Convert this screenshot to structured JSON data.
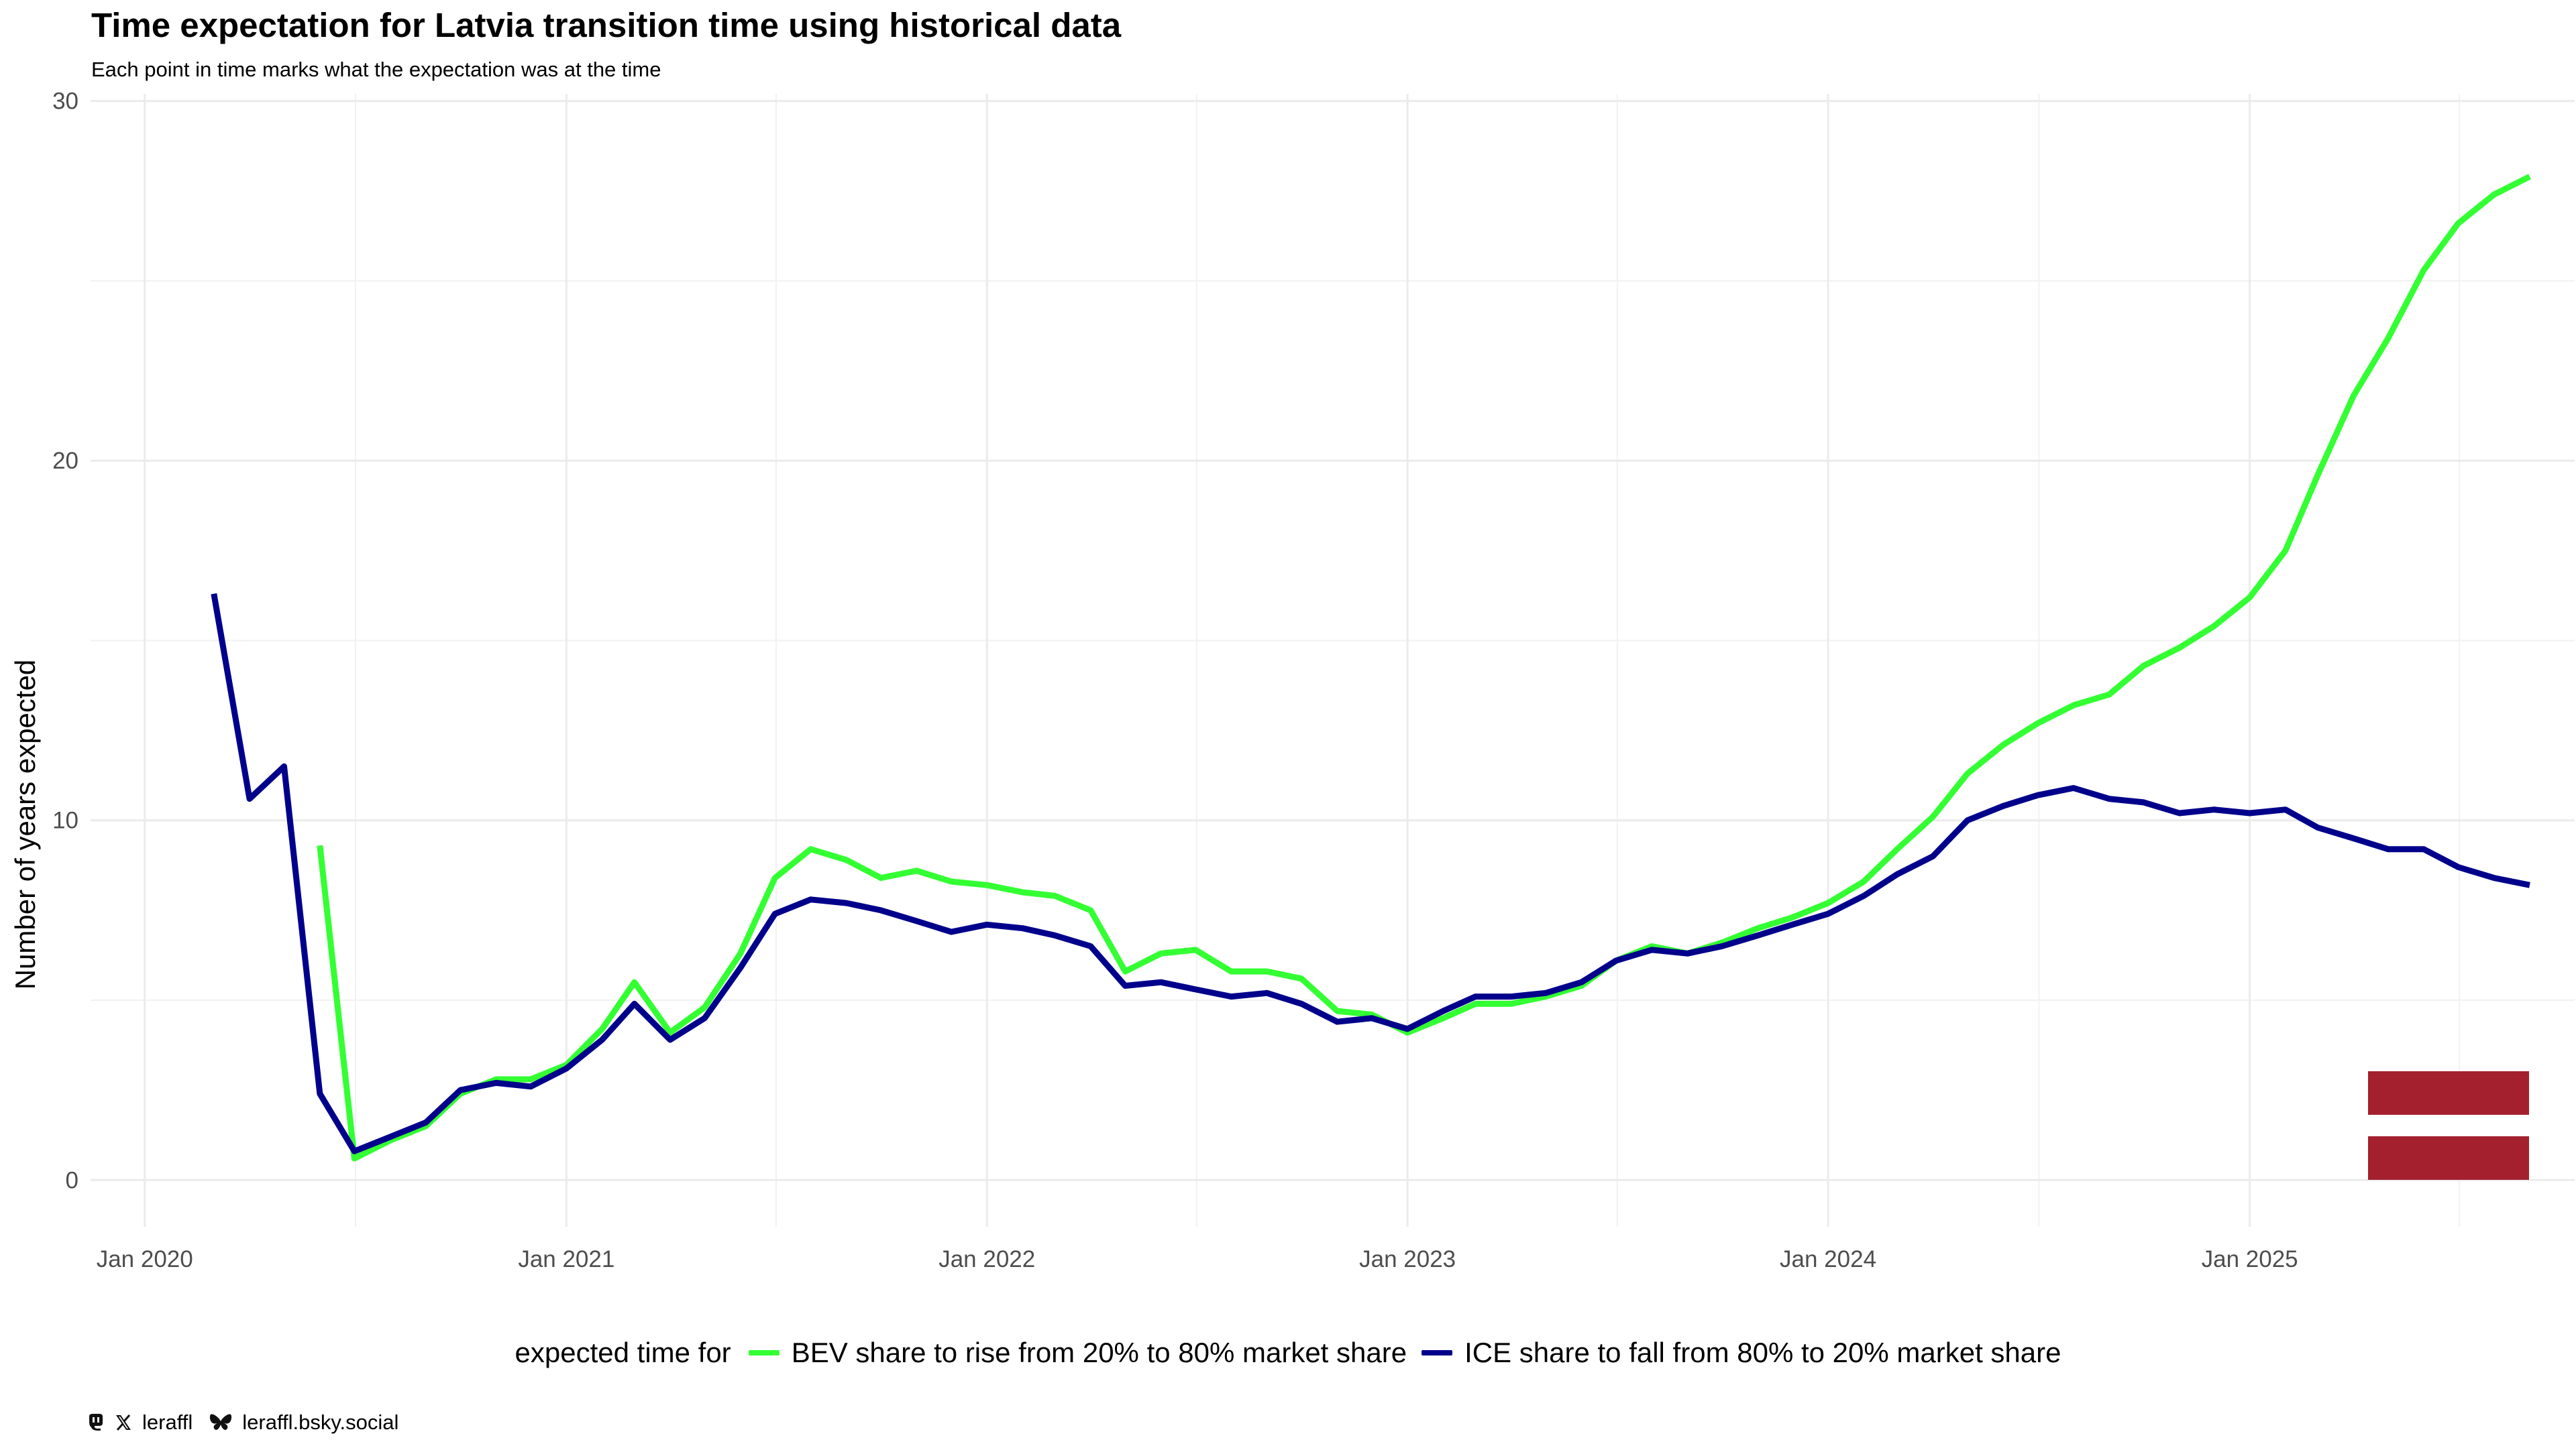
{
  "title": "Time expectation for Latvia transition time using historical data",
  "subtitle": "Each point in time marks what the expectation was at the time",
  "legend": {
    "title": "expected time for",
    "items": [
      {
        "label": "BEV share to rise from 20% to 80% market share",
        "color": "#33ff33"
      },
      {
        "label": "ICE share to fall from 80% to 20% market share",
        "color": "#00008b"
      }
    ]
  },
  "caption": {
    "handle": "leraffl",
    "bluesky": "leraffl.bsky.social",
    "icons": [
      "mastodon-icon",
      "x-icon",
      "bluesky-butterfly-icon"
    ]
  },
  "flag": {
    "name": "Latvia",
    "colors": {
      "red": "#a4202f",
      "white": "#ffffff"
    }
  },
  "chart_data": {
    "type": "line",
    "title": "Time expectation for Latvia transition time using historical data",
    "subtitle": "Each point in time marks what the expectation was at the time",
    "xlabel": "",
    "ylabel": "Number of years expected",
    "xlim": [
      "2019-11-15",
      "2025-10-10"
    ],
    "ylim": [
      -1.3,
      30.2
    ],
    "xticks": [
      {
        "date": "2020-01-01",
        "label": "Jan 2020"
      },
      {
        "date": "2021-01-01",
        "label": "Jan 2021"
      },
      {
        "date": "2022-01-01",
        "label": "Jan 2022"
      },
      {
        "date": "2023-01-01",
        "label": "Jan 2023"
      },
      {
        "date": "2024-01-01",
        "label": "Jan 2024"
      },
      {
        "date": "2025-01-01",
        "label": "Jan 2025"
      }
    ],
    "yticks": [
      0,
      10,
      20,
      30
    ],
    "grid": true,
    "legend_position": "bottom",
    "series": [
      {
        "name": "BEV share to rise from 20% to 80% market share",
        "color": "#33ff33",
        "points": [
          [
            "2020-06-01",
            9.3
          ],
          [
            "2020-07-01",
            0.6
          ],
          [
            "2020-08-01",
            1.1
          ],
          [
            "2020-09-01",
            1.5
          ],
          [
            "2020-10-01",
            2.4
          ],
          [
            "2020-11-01",
            2.8
          ],
          [
            "2020-12-01",
            2.8
          ],
          [
            "2021-01-01",
            3.2
          ],
          [
            "2021-02-01",
            4.2
          ],
          [
            "2021-03-01",
            5.5
          ],
          [
            "2021-04-01",
            4.1
          ],
          [
            "2021-05-01",
            4.8
          ],
          [
            "2021-06-01",
            6.3
          ],
          [
            "2021-07-01",
            8.4
          ],
          [
            "2021-08-01",
            9.2
          ],
          [
            "2021-09-01",
            8.9
          ],
          [
            "2021-10-01",
            8.4
          ],
          [
            "2021-11-01",
            8.6
          ],
          [
            "2021-12-01",
            8.3
          ],
          [
            "2022-01-01",
            8.2
          ],
          [
            "2022-02-01",
            8.0
          ],
          [
            "2022-03-01",
            7.9
          ],
          [
            "2022-04-01",
            7.5
          ],
          [
            "2022-05-01",
            5.8
          ],
          [
            "2022-06-01",
            6.3
          ],
          [
            "2022-07-01",
            6.4
          ],
          [
            "2022-08-01",
            5.8
          ],
          [
            "2022-09-01",
            5.8
          ],
          [
            "2022-10-01",
            5.6
          ],
          [
            "2022-11-01",
            4.7
          ],
          [
            "2022-12-01",
            4.6
          ],
          [
            "2023-01-01",
            4.1
          ],
          [
            "2023-02-01",
            4.5
          ],
          [
            "2023-03-01",
            4.9
          ],
          [
            "2023-04-01",
            4.9
          ],
          [
            "2023-05-01",
            5.1
          ],
          [
            "2023-06-01",
            5.4
          ],
          [
            "2023-07-01",
            6.1
          ],
          [
            "2023-08-01",
            6.5
          ],
          [
            "2023-09-01",
            6.3
          ],
          [
            "2023-10-01",
            6.6
          ],
          [
            "2023-11-01",
            7.0
          ],
          [
            "2023-12-01",
            7.3
          ],
          [
            "2024-01-01",
            7.7
          ],
          [
            "2024-02-01",
            8.3
          ],
          [
            "2024-03-01",
            9.2
          ],
          [
            "2024-04-01",
            10.1
          ],
          [
            "2024-05-01",
            11.3
          ],
          [
            "2024-06-01",
            12.1
          ],
          [
            "2024-07-01",
            12.7
          ],
          [
            "2024-08-01",
            13.2
          ],
          [
            "2024-09-01",
            13.5
          ],
          [
            "2024-10-01",
            14.3
          ],
          [
            "2024-11-01",
            14.8
          ],
          [
            "2024-12-01",
            15.4
          ],
          [
            "2025-01-01",
            16.2
          ],
          [
            "2025-02-01",
            17.5
          ],
          [
            "2025-03-01",
            19.6
          ],
          [
            "2025-04-01",
            21.8
          ],
          [
            "2025-05-01",
            23.4
          ],
          [
            "2025-06-01",
            25.3
          ],
          [
            "2025-07-01",
            26.6
          ],
          [
            "2025-08-01",
            27.4
          ],
          [
            "2025-09-01",
            27.9
          ]
        ]
      },
      {
        "name": "ICE share to fall from 80% to 20% market share",
        "color": "#00008b",
        "points": [
          [
            "2020-03-01",
            16.3
          ],
          [
            "2020-04-01",
            10.6
          ],
          [
            "2020-05-01",
            11.5
          ],
          [
            "2020-06-01",
            2.4
          ],
          [
            "2020-07-01",
            0.8
          ],
          [
            "2020-08-01",
            1.2
          ],
          [
            "2020-09-01",
            1.6
          ],
          [
            "2020-10-01",
            2.5
          ],
          [
            "2020-11-01",
            2.7
          ],
          [
            "2020-12-01",
            2.6
          ],
          [
            "2021-01-01",
            3.1
          ],
          [
            "2021-02-01",
            3.9
          ],
          [
            "2021-03-01",
            4.9
          ],
          [
            "2021-04-01",
            3.9
          ],
          [
            "2021-05-01",
            4.5
          ],
          [
            "2021-06-01",
            5.9
          ],
          [
            "2021-07-01",
            7.4
          ],
          [
            "2021-08-01",
            7.8
          ],
          [
            "2021-09-01",
            7.7
          ],
          [
            "2021-10-01",
            7.5
          ],
          [
            "2021-11-01",
            7.2
          ],
          [
            "2021-12-01",
            6.9
          ],
          [
            "2022-01-01",
            7.1
          ],
          [
            "2022-02-01",
            7.0
          ],
          [
            "2022-03-01",
            6.8
          ],
          [
            "2022-04-01",
            6.5
          ],
          [
            "2022-05-01",
            5.4
          ],
          [
            "2022-06-01",
            5.5
          ],
          [
            "2022-07-01",
            5.3
          ],
          [
            "2022-08-01",
            5.1
          ],
          [
            "2022-09-01",
            5.2
          ],
          [
            "2022-10-01",
            4.9
          ],
          [
            "2022-11-01",
            4.4
          ],
          [
            "2022-12-01",
            4.5
          ],
          [
            "2023-01-01",
            4.2
          ],
          [
            "2023-02-01",
            4.7
          ],
          [
            "2023-03-01",
            5.1
          ],
          [
            "2023-04-01",
            5.1
          ],
          [
            "2023-05-01",
            5.2
          ],
          [
            "2023-06-01",
            5.5
          ],
          [
            "2023-07-01",
            6.1
          ],
          [
            "2023-08-01",
            6.4
          ],
          [
            "2023-09-01",
            6.3
          ],
          [
            "2023-10-01",
            6.5
          ],
          [
            "2023-11-01",
            6.8
          ],
          [
            "2023-12-01",
            7.1
          ],
          [
            "2024-01-01",
            7.4
          ],
          [
            "2024-02-01",
            7.9
          ],
          [
            "2024-03-01",
            8.5
          ],
          [
            "2024-04-01",
            9.0
          ],
          [
            "2024-05-01",
            10.0
          ],
          [
            "2024-06-01",
            10.4
          ],
          [
            "2024-07-01",
            10.7
          ],
          [
            "2024-08-01",
            10.9
          ],
          [
            "2024-09-01",
            10.6
          ],
          [
            "2024-10-01",
            10.5
          ],
          [
            "2024-11-01",
            10.2
          ],
          [
            "2024-12-01",
            10.3
          ],
          [
            "2025-01-01",
            10.2
          ],
          [
            "2025-02-01",
            10.3
          ],
          [
            "2025-03-01",
            9.8
          ],
          [
            "2025-04-01",
            9.5
          ],
          [
            "2025-05-01",
            9.2
          ],
          [
            "2025-06-01",
            9.2
          ],
          [
            "2025-07-01",
            8.7
          ],
          [
            "2025-08-01",
            8.4
          ],
          [
            "2025-09-01",
            8.2
          ]
        ]
      }
    ]
  }
}
